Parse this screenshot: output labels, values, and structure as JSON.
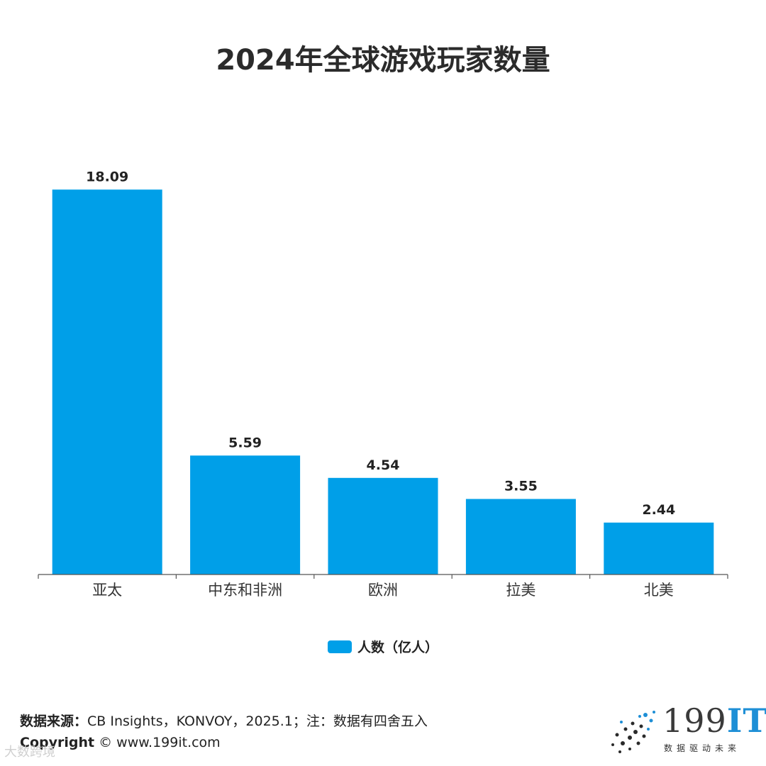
{
  "chart_data": {
    "type": "bar",
    "title": "2024年全球游戏玩家数量",
    "categories": [
      "亚太",
      "中东和非洲",
      "欧洲",
      "拉美",
      "北美"
    ],
    "series": [
      {
        "name": "人数（亿人）",
        "values": [
          18.09,
          5.59,
          4.54,
          3.55,
          2.44
        ]
      }
    ],
    "data_labels": [
      "18.09",
      "5.59",
      "4.54",
      "3.55",
      "2.44"
    ],
    "ylim": [
      0,
      20
    ],
    "grid": false,
    "legend_position": "bottom",
    "bar_color": "#009fe8"
  },
  "footer": {
    "source_label": "数据来源：",
    "source_text": "CB Insights，KONVOY，2025.1；注：数据有四舍五入",
    "copyright_label": "Copyright",
    "copyright_text": " ©  www.199it.com"
  },
  "watermark": {
    "text": "大数跨境"
  },
  "logo": {
    "main": "199",
    "accent": "IT",
    "sub": "数据驱动未来"
  }
}
